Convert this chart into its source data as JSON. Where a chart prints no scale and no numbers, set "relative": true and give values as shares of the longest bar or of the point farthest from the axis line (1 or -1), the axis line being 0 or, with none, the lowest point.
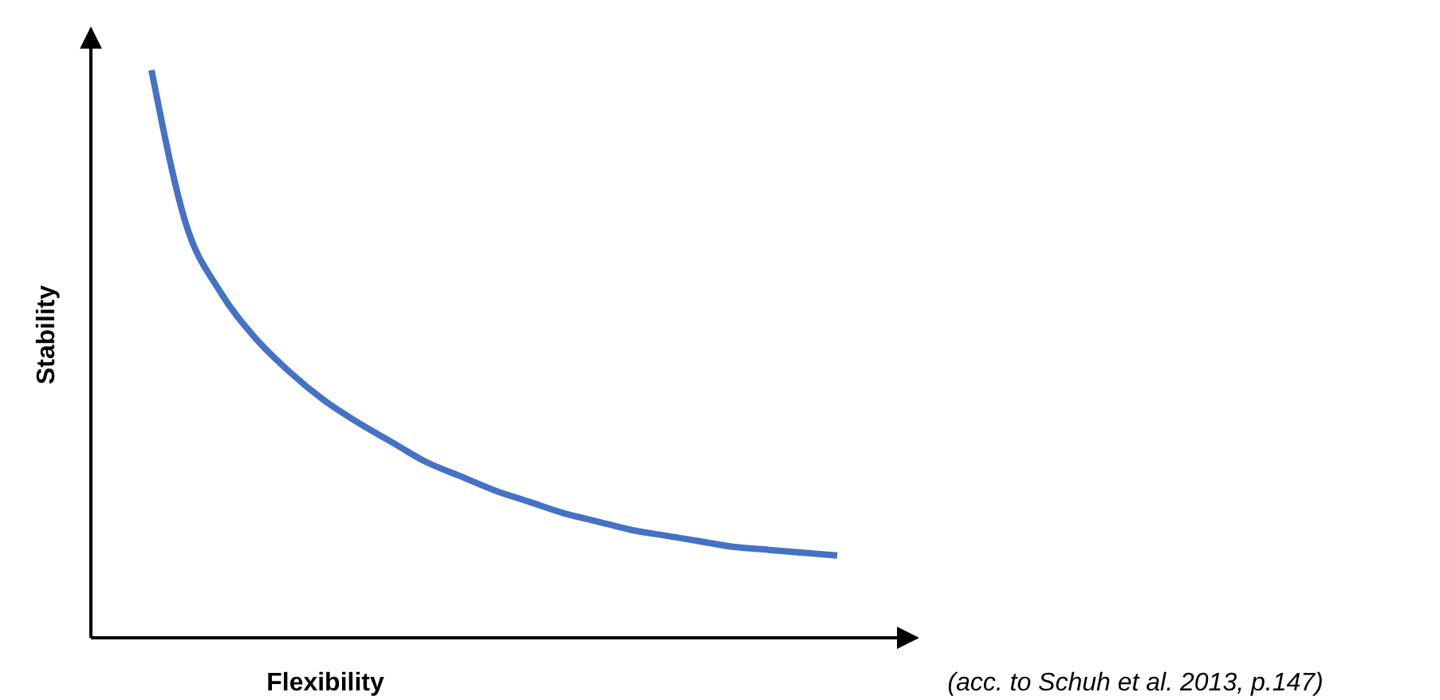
{
  "chart_data": {
    "type": "line",
    "relative": true,
    "xlabel": "Flexibility",
    "ylabel": "Stability",
    "annotations": [
      "(acc. to Schuh et al. 2013, p.147)"
    ],
    "categories": [
      null,
      null,
      null,
      null,
      null,
      null,
      null,
      null,
      null,
      null,
      null,
      null,
      null,
      null,
      null,
      null,
      null,
      null,
      null,
      null,
      null
    ],
    "series": [
      {
        "color": "#4472c4",
        "values": [
          1,
          0.73,
          0.61,
          0.53,
          0.47,
          0.42,
          0.38,
          0.345,
          0.31,
          0.285,
          0.26,
          0.24,
          0.22,
          0.205,
          0.19,
          0.18,
          0.17,
          0.16,
          0.155,
          0.15,
          0.145
        ]
      }
    ]
  }
}
